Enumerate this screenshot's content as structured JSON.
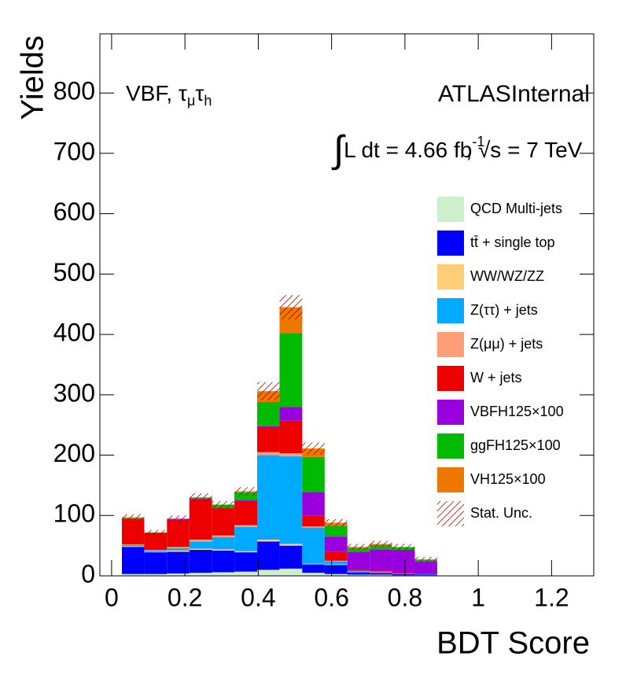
{
  "chart_data": {
    "type": "stacked_histogram",
    "x_label": "BDT Score",
    "y_label": "Yields",
    "channel": [
      "VBF, ",
      "τ",
      "μ",
      "τ",
      "h"
    ],
    "experiment": "ATLAS",
    "status": "Internal",
    "lumi": [
      "∫",
      "L dt = 4.66 fb",
      "-1",
      ", ",
      "√s",
      " = 7 TeV"
    ],
    "bins": [
      0.028,
      0.089,
      0.151,
      0.212,
      0.274,
      0.335,
      0.397,
      0.458,
      0.52,
      0.581,
      0.643,
      0.704,
      0.765,
      0.827,
      0.888
    ],
    "series": [
      {
        "name": "QCD Multi-jets",
        "color": "#ccf0cc",
        "values": [
          3,
          3,
          4,
          5,
          6,
          7,
          10,
          12,
          5,
          3,
          2,
          2,
          1,
          1
        ]
      },
      {
        "name": "tt̄ + single top",
        "color": "#0000ff",
        "values": [
          45,
          36,
          36,
          38,
          36,
          32,
          47,
          38,
          14,
          15,
          4,
          3,
          2,
          1
        ]
      },
      {
        "name": "WW/WZ/ZZ",
        "color": "#ffcc77",
        "values": [
          1,
          1,
          2,
          2,
          2,
          2,
          3,
          3,
          1,
          1,
          0.5,
          0.5,
          0,
          0
        ]
      },
      {
        "name": "Z(ττ) + jets",
        "color": "#00aaff",
        "values": [
          2,
          2,
          4,
          12,
          20,
          40,
          140,
          145,
          60,
          5,
          1,
          1,
          1,
          0.5
        ]
      },
      {
        "name": "Z(μμ) + jets",
        "color": "#ff9f77",
        "values": [
          1,
          1,
          2,
          3,
          3,
          3,
          5,
          5,
          2,
          1,
          0.5,
          0.5,
          0,
          0
        ]
      },
      {
        "name": "W + jets",
        "color": "#ee0000",
        "values": [
          42,
          28,
          45,
          67,
          45,
          40,
          40,
          54,
          18,
          15,
          2,
          2,
          1,
          1
        ]
      },
      {
        "name": "VBFH125×100",
        "color": "#9900dd",
        "values": [
          1,
          0.5,
          1,
          1,
          1,
          2,
          3,
          23,
          39,
          25,
          30,
          35,
          38,
          20
        ]
      },
      {
        "name": "ggFH125×100",
        "color": "#00bb00",
        "values": [
          1,
          0.5,
          1,
          2,
          5,
          12,
          40,
          122,
          58,
          18,
          6,
          7,
          4,
          3
        ]
      },
      {
        "name": "VH125×100",
        "color": "#ee7700",
        "values": [
          1,
          0,
          0,
          0,
          0,
          2,
          18,
          43,
          14,
          5,
          2,
          2,
          1,
          1
        ]
      }
    ],
    "uncertainty": {
      "name": "Stat. Unc.",
      "color": "#aa0000",
      "values": [
        5,
        4,
        5,
        7,
        6,
        7,
        15,
        20,
        10,
        6,
        5,
        5,
        5,
        4
      ]
    },
    "xlim": [
      -0.032,
      1.315
    ],
    "ylim": [
      0,
      898
    ],
    "xticks": [
      0,
      0.2,
      0.4,
      0.6,
      0.8,
      1,
      1.2
    ],
    "yticks": [
      0,
      100,
      200,
      300,
      400,
      500,
      600,
      700,
      800
    ]
  }
}
